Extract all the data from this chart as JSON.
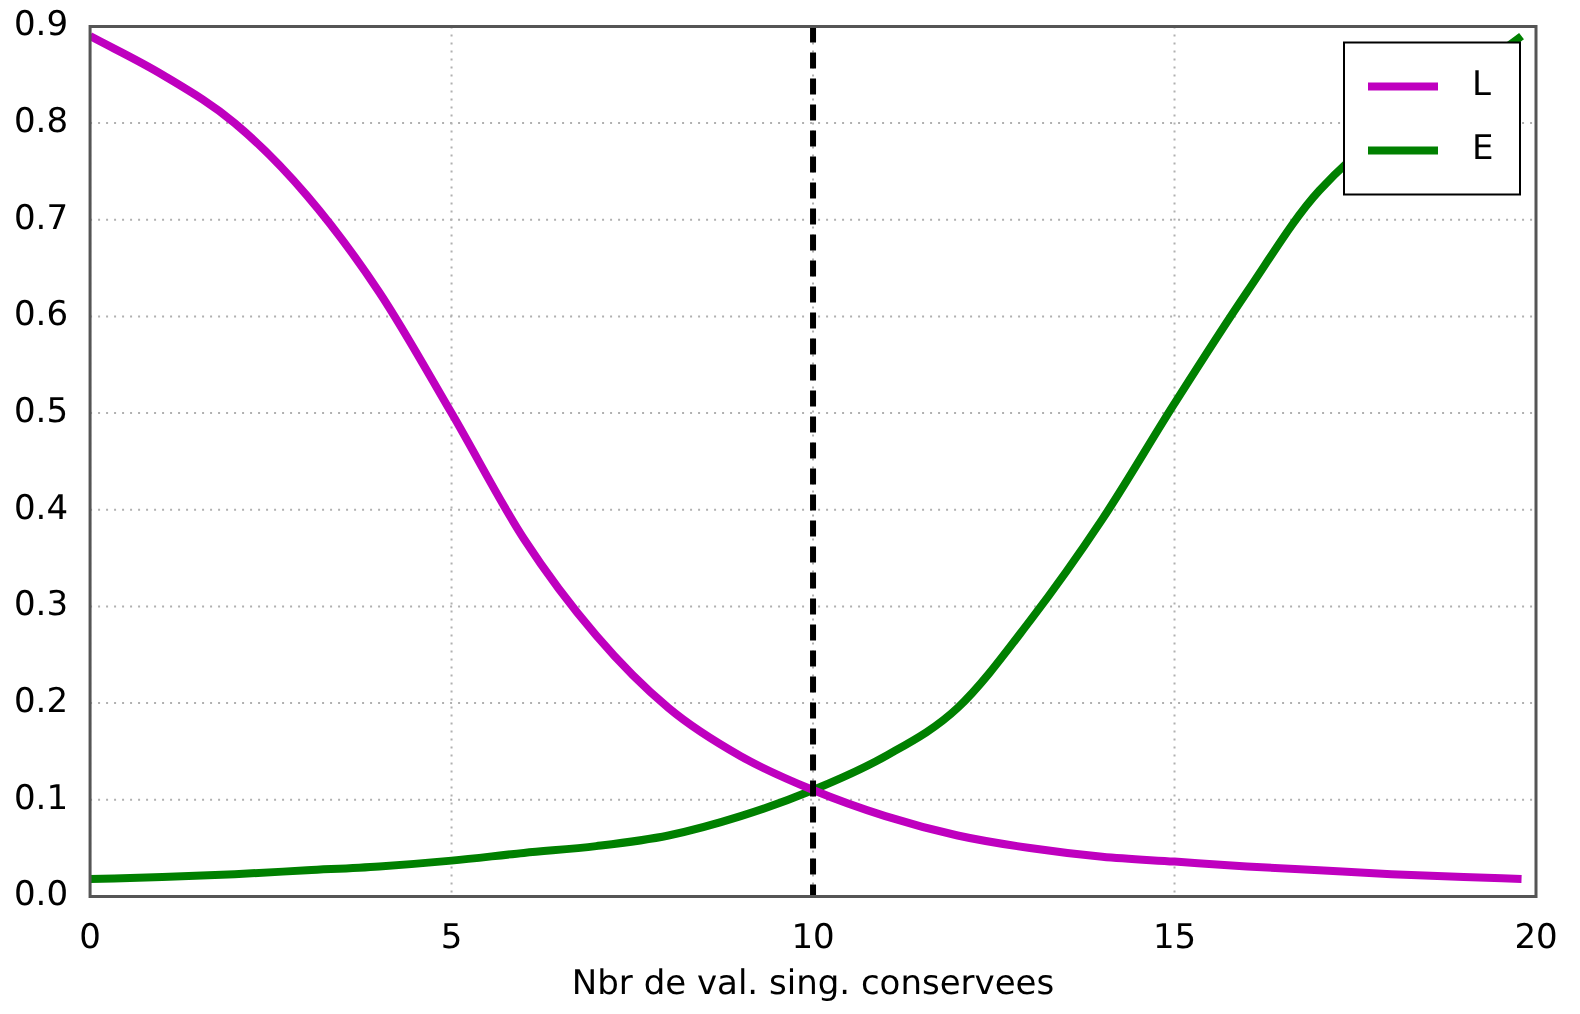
{
  "chart_data": {
    "type": "line",
    "xlabel": "Nbr de val. sing. conservees",
    "x": [
      0,
      1,
      2,
      3,
      4,
      5,
      6,
      7,
      8,
      9,
      10,
      11,
      12,
      13,
      14,
      15,
      16,
      17,
      18,
      19,
      19.8
    ],
    "series": [
      {
        "name": "L",
        "color": "#bf00bf",
        "values": [
          0.89,
          0.85,
          0.8,
          0.725,
          0.625,
          0.5,
          0.37,
          0.27,
          0.195,
          0.145,
          0.11,
          0.083,
          0.063,
          0.05,
          0.041,
          0.036,
          0.031,
          0.027,
          0.023,
          0.02,
          0.018
        ]
      },
      {
        "name": "E",
        "color": "#008000",
        "values": [
          0.018,
          0.02,
          0.023,
          0.027,
          0.031,
          0.037,
          0.045,
          0.052,
          0.063,
          0.083,
          0.11,
          0.145,
          0.195,
          0.285,
          0.39,
          0.51,
          0.625,
          0.73,
          null,
          null,
          0.89
        ]
      }
    ],
    "xlim": [
      0,
      20
    ],
    "xticks": [
      0,
      5,
      10,
      15,
      20
    ],
    "ylim": [
      0,
      0.9
    ],
    "yticks": [
      {
        "value": 0,
        "label": "0.0"
      },
      0.1,
      0.2,
      0.3,
      0.4,
      0.5,
      0.6,
      0.7,
      0.8,
      0.9
    ],
    "ref_lines": [
      {
        "axis": "x",
        "value": 10,
        "color": "#000000",
        "line_style": "dashed"
      }
    ],
    "grid": true,
    "legend": "top right",
    "marker": "none",
    "line_style": "solid"
  }
}
